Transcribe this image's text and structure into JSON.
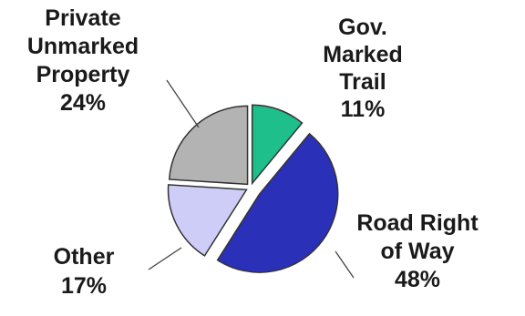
{
  "chart_data": {
    "type": "pie",
    "title": "",
    "slices": [
      {
        "label_lines": [
          "Gov.",
          "Marked",
          "Trail"
        ],
        "pct_text": "11%",
        "value": 11,
        "color": "#1fbf8c"
      },
      {
        "label_lines": [
          "Road Right",
          "of Way"
        ],
        "pct_text": "48%",
        "value": 48,
        "color": "#2b30b8"
      },
      {
        "label_lines": [
          "Other"
        ],
        "pct_text": "17%",
        "value": 17,
        "color": "#cdcdf7"
      },
      {
        "label_lines": [
          "Private",
          "Unmarked",
          "Property"
        ],
        "pct_text": "24%",
        "value": 24,
        "color": "#b3b3b3"
      }
    ],
    "start_angle_deg": 0,
    "direction": "clockwise",
    "legend": "none",
    "labels": "outside with leader lines"
  }
}
